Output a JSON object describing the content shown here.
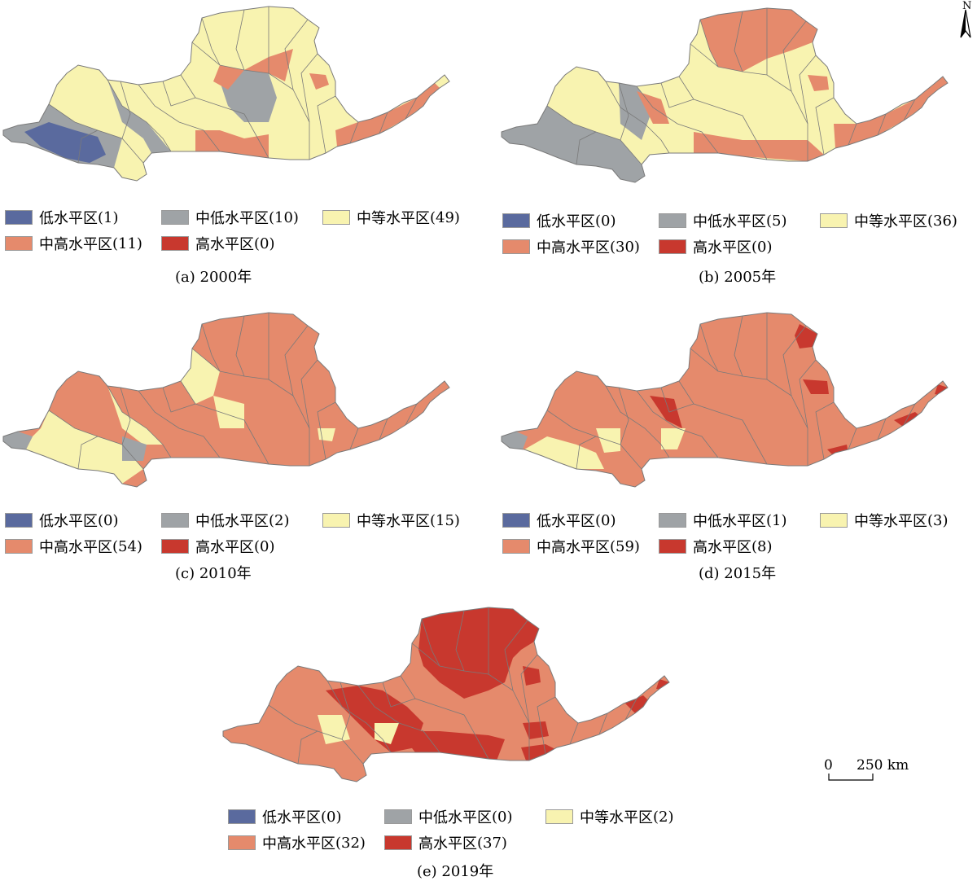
{
  "colors": {
    "low": "#5a6a9e",
    "mid_low": "#9fa3a6",
    "medium": "#f8f3b0",
    "mid_high": "#e58a6c",
    "high": "#c8382e",
    "border": "#7a7a7a"
  },
  "legend_labels": {
    "low": "低水平区",
    "mid_low": "中低水平区",
    "medium": "中等水平区",
    "mid_high": "中高水平区",
    "high": "高水平区"
  },
  "panels": [
    {
      "caption": "(a) 2000年",
      "counts": {
        "low": "(1)",
        "mid_low": "(10)",
        "medium": "(49)",
        "mid_high": "(11)",
        "high": "(0)"
      }
    },
    {
      "caption": "(b) 2005年",
      "counts": {
        "low": "(0)",
        "mid_low": "(5)",
        "medium": "(36)",
        "mid_high": "(30)",
        "high": "(0)"
      }
    },
    {
      "caption": "(c) 2010年",
      "counts": {
        "low": "(0)",
        "mid_low": "(2)",
        "medium": "(15)",
        "mid_high": "(54)",
        "high": "(0)"
      }
    },
    {
      "caption": "(d) 2015年",
      "counts": {
        "low": "(0)",
        "mid_low": "(1)",
        "medium": "(3)",
        "mid_high": "(59)",
        "high": "(8)"
      }
    },
    {
      "caption": "(e) 2019年",
      "counts": {
        "low": "(0)",
        "mid_low": "(0)",
        "medium": "(2)",
        "mid_high": "(32)",
        "high": "(37)"
      }
    }
  ],
  "north_arrow": {
    "label": "N"
  },
  "scale_bar": {
    "start": "0",
    "end": "250 km"
  }
}
